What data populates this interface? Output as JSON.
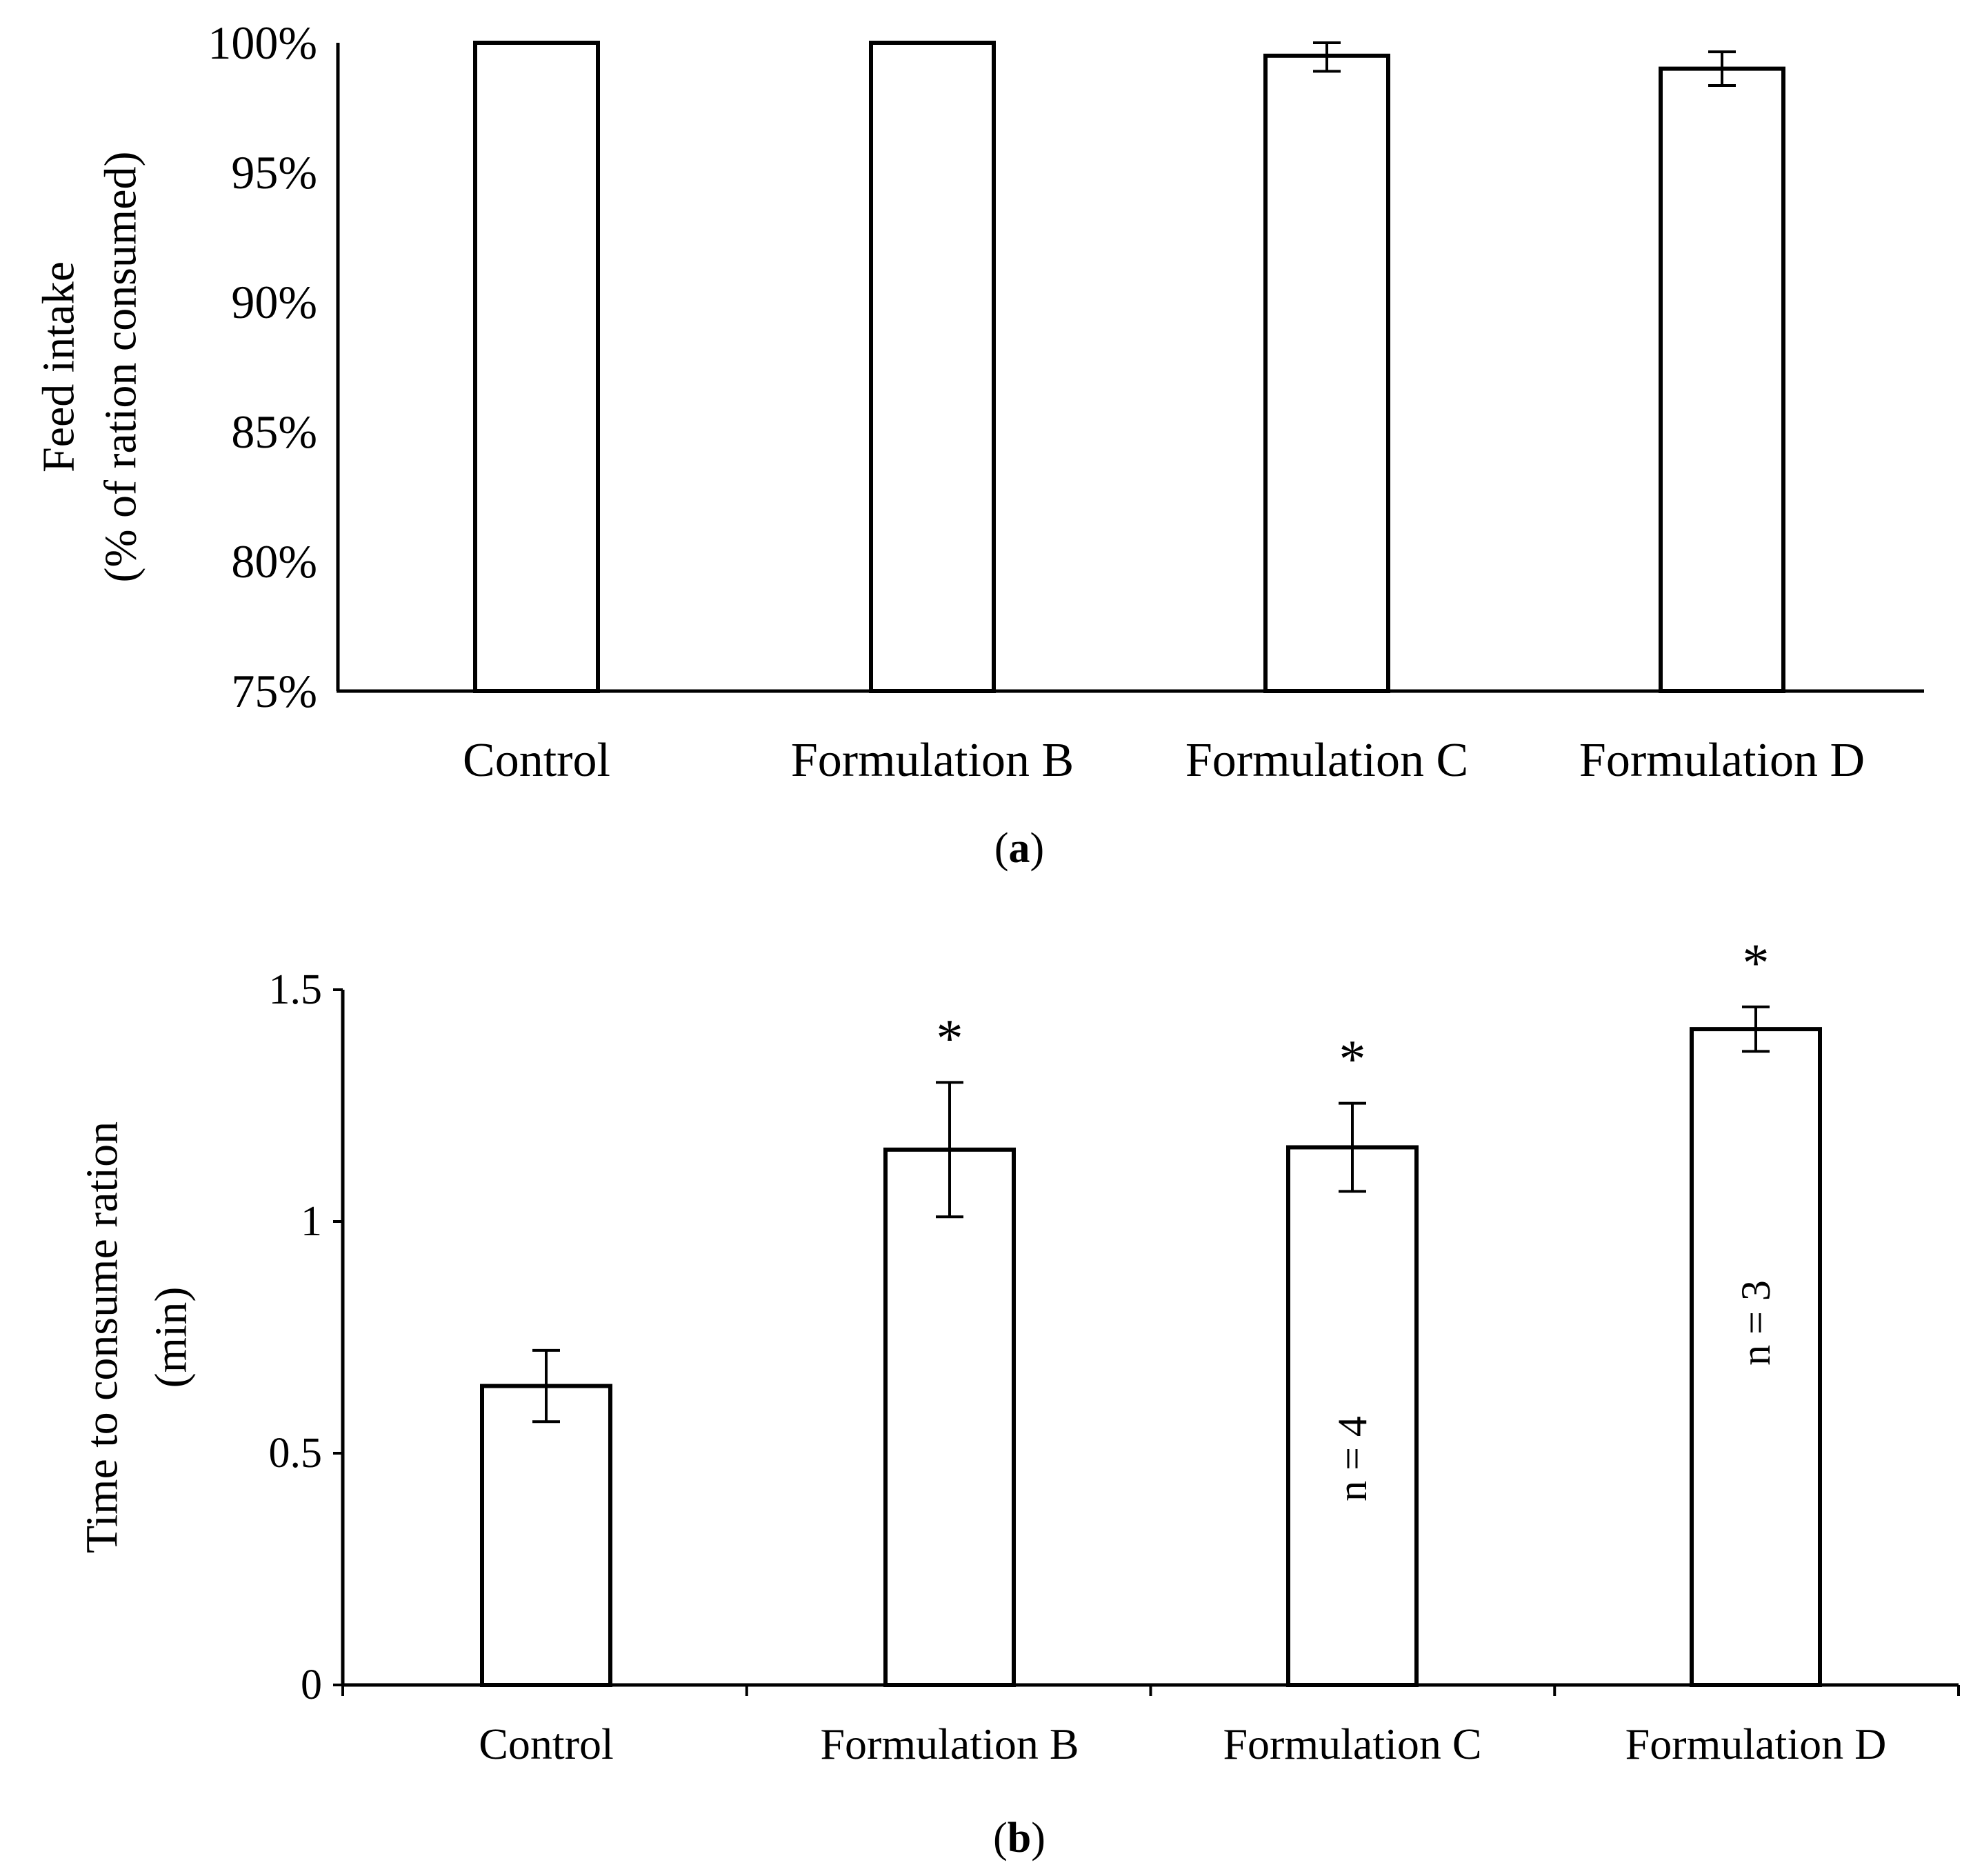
{
  "figure": {
    "panel_a_caption": "a",
    "panel_b_caption": "b"
  },
  "chart_data": [
    {
      "panel": "a",
      "type": "bar",
      "title": "",
      "xlabel": "",
      "ylabel_lines": [
        "Feed intake",
        "(% of ration consumed)"
      ],
      "categories": [
        "Control",
        "Formulation B",
        "Formulation C",
        "Formulation D"
      ],
      "values": [
        100,
        100,
        99.5,
        99.0
      ],
      "error": [
        null,
        null,
        0.6,
        0.65
      ],
      "ylim": [
        75,
        100
      ],
      "yticks": [
        75,
        80,
        85,
        90,
        95,
        100
      ],
      "ytick_labels": [
        "75%",
        "80%",
        "85%",
        "90%",
        "95%",
        "100%"
      ],
      "annotations": [],
      "grid": false,
      "legend": "none"
    },
    {
      "panel": "b",
      "type": "bar",
      "title": "",
      "xlabel": "",
      "ylabel_lines": [
        "Time to consume ration",
        "(min)"
      ],
      "categories": [
        "Control",
        "Formulation B",
        "Formulation C",
        "Formulation D"
      ],
      "values": [
        0.645,
        1.155,
        1.16,
        1.415
      ],
      "error": [
        0.077,
        0.145,
        0.095,
        0.048
      ],
      "ylim": [
        0,
        1.5
      ],
      "yticks": [
        0,
        0.5,
        1,
        1.5
      ],
      "ytick_labels": [
        "0",
        "0.5",
        "1",
        "1.5"
      ],
      "significance": [
        "",
        "*",
        "*",
        "*"
      ],
      "bar_notes": [
        "",
        "",
        "n = 4",
        "n = 3"
      ],
      "grid": false,
      "legend": "none"
    }
  ]
}
